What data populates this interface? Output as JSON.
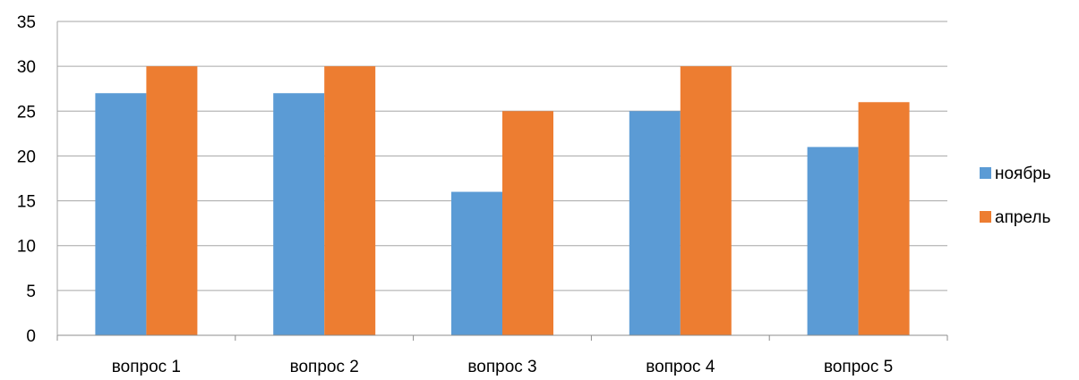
{
  "chart_data": {
    "type": "bar",
    "categories": [
      "вопрос 1",
      "вопрос 2",
      "вопрос 3",
      "вопрос 4",
      "вопрос 5"
    ],
    "series": [
      {
        "name": "ноябрь",
        "color": "#5b9bd5",
        "values": [
          27,
          27,
          16,
          25,
          21
        ]
      },
      {
        "name": "апрель",
        "color": "#ed7d31",
        "values": [
          30,
          30,
          25,
          30,
          26
        ]
      }
    ],
    "ylim": [
      0,
      35
    ],
    "yticks": [
      0,
      5,
      10,
      15,
      20,
      25,
      30,
      35
    ],
    "grid": true,
    "legend": "right"
  }
}
